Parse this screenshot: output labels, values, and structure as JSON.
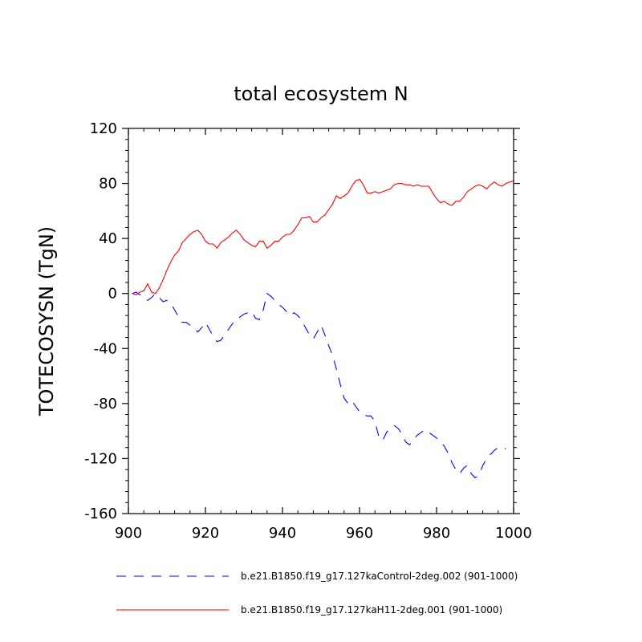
{
  "chart_data": {
    "type": "line",
    "title": "total ecosystem N",
    "xlabel": "",
    "ylabel": "TOTECOSYSN  (TgN)",
    "xlim": [
      900,
      1000
    ],
    "ylim": [
      -160,
      120
    ],
    "x_ticks": [
      900,
      920,
      940,
      960,
      980,
      1000
    ],
    "x_tick_labels": [
      "900",
      "920",
      "940",
      "960",
      "980",
      "1000"
    ],
    "y_ticks": [
      120,
      80,
      40,
      0,
      -40,
      -80,
      -120,
      -160
    ],
    "y_tick_labels": [
      "120",
      "80",
      "40",
      "0",
      "-40",
      "-80",
      "-120",
      "-160"
    ],
    "grid": false,
    "legend_position": "bottom",
    "series": [
      {
        "name": "b.e21.B1850.f19_g17.127kaControl-2deg.002 (901-1000)",
        "color": "#0000ff",
        "dash": "dashed",
        "x": [
          901,
          902,
          903,
          904,
          905,
          906,
          907,
          908,
          909,
          910,
          911,
          912,
          913,
          914,
          915,
          916,
          917,
          918,
          919,
          920,
          921,
          922,
          923,
          924,
          925,
          926,
          927,
          928,
          929,
          930,
          931,
          932,
          933,
          934,
          935,
          936,
          937,
          938,
          939,
          940,
          941,
          942,
          943,
          944,
          945,
          946,
          947,
          948,
          949,
          950,
          951,
          952,
          953,
          954,
          955,
          956,
          957,
          958,
          959,
          960,
          961,
          962,
          963,
          964,
          965,
          966,
          967,
          968,
          969,
          970,
          971,
          972,
          973,
          974,
          975,
          976,
          977,
          978,
          979,
          980,
          981,
          982,
          983,
          984,
          985,
          986,
          987,
          988,
          989,
          990,
          991,
          992,
          993,
          994,
          995,
          996,
          997,
          998
        ],
        "values": [
          0,
          1,
          -1,
          -2,
          -5,
          -3,
          0,
          -3,
          -6,
          -5,
          -7,
          -12,
          -17,
          -21,
          -21,
          -23,
          -25,
          -28,
          -25,
          -21,
          -26,
          -31,
          -35,
          -34,
          -30,
          -26,
          -22,
          -19,
          -17,
          -15,
          -14,
          -13,
          -18,
          -19,
          -12,
          0,
          -2,
          -5,
          -8,
          -10,
          -13,
          -16,
          -14,
          -16,
          -20,
          -25,
          -30,
          -33,
          -28,
          -23,
          -30,
          -38,
          -45,
          -55,
          -66,
          -76,
          -80,
          -78,
          -82,
          -86,
          -88,
          -89,
          -89,
          -93,
          -104,
          -107,
          -101,
          -98,
          -96,
          -98,
          -102,
          -108,
          -110,
          -106,
          -103,
          -101,
          -99,
          -101,
          -103,
          -105,
          -108,
          -111,
          -116,
          -123,
          -128,
          -131,
          -127,
          -125,
          -131,
          -134,
          -132,
          -125,
          -120,
          -117,
          -114,
          -112,
          -112,
          -113
        ]
      },
      {
        "name": "b.e21.B1850.f19_g17.127kaH11-2deg.001 (901-1000)",
        "color": "#ff0000",
        "dash": "solid",
        "x": [
          901,
          902,
          903,
          904,
          905,
          906,
          907,
          908,
          909,
          910,
          911,
          912,
          913,
          914,
          915,
          916,
          917,
          918,
          919,
          920,
          921,
          922,
          923,
          924,
          925,
          926,
          927,
          928,
          929,
          930,
          931,
          932,
          933,
          934,
          935,
          936,
          937,
          938,
          939,
          940,
          941,
          942,
          943,
          944,
          945,
          946,
          947,
          948,
          949,
          950,
          951,
          952,
          953,
          954,
          955,
          956,
          957,
          958,
          959,
          960,
          961,
          962,
          963,
          964,
          965,
          966,
          967,
          968,
          969,
          970,
          971,
          972,
          973,
          974,
          975,
          976,
          977,
          978,
          979,
          980,
          981,
          982,
          983,
          984,
          985,
          986,
          987,
          988,
          989,
          990,
          991,
          992,
          993,
          994,
          995,
          996,
          997,
          998,
          999,
          1000
        ],
        "values": [
          0,
          -1,
          1,
          2,
          7,
          1,
          0,
          4,
          10,
          17,
          23,
          28,
          31,
          37,
          40,
          43,
          45,
          46,
          43,
          38,
          36,
          36,
          33,
          37,
          39,
          41,
          44,
          46,
          43,
          39,
          37,
          35,
          34,
          38,
          38,
          33,
          35,
          38,
          38,
          41,
          43,
          43,
          46,
          50,
          55,
          55,
          56,
          52,
          52,
          55,
          57,
          61,
          65,
          71,
          69,
          71,
          73,
          78,
          82,
          83,
          79,
          73,
          73,
          74,
          73,
          74,
          75,
          76,
          79,
          80,
          80,
          79,
          79,
          78,
          79,
          78,
          78,
          78,
          73,
          69,
          66,
          67,
          65,
          64,
          67,
          67,
          70,
          74,
          76,
          78,
          79,
          78,
          76,
          79,
          81,
          79,
          78,
          80,
          81,
          82
        ]
      }
    ]
  }
}
